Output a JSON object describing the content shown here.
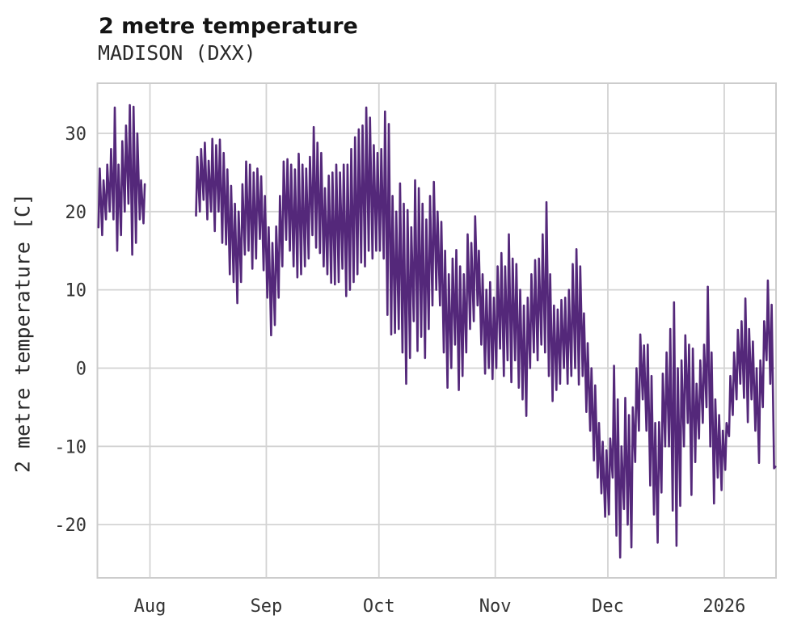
{
  "header": {
    "title": "2 metre temperature",
    "subtitle": "MADISON (DXX)"
  },
  "chart_data": {
    "type": "line",
    "title": "2 metre temperature",
    "subtitle": "MADISON (DXX)",
    "xlabel": "",
    "ylabel": "2 metre temperature [C]",
    "legend": "none",
    "grid": true,
    "grid_color": "#d3d3d3",
    "spine_color": "#cccccc",
    "line_color": "#54287a",
    "line_width": 2.6,
    "y_ticks": [
      30,
      20,
      10,
      0,
      -10,
      -20
    ],
    "ylim": [
      -26.8,
      36.4
    ],
    "x_unit": "days (0 = first plotted day, mid-July; series runs to mid-January)",
    "xlim_days": [
      0,
      180.8
    ],
    "x_ticks": [
      {
        "t": 14,
        "label": "Aug"
      },
      {
        "t": 45,
        "label": "Sep"
      },
      {
        "t": 75,
        "label": "Oct"
      },
      {
        "t": 106,
        "label": "Nov"
      },
      {
        "t": 136,
        "label": "Dec"
      },
      {
        "t": 167,
        "label": "2026"
      }
    ],
    "series_name": "2 metre temperature, daily min/max envelope [C]",
    "point_format": "[day, daily_min, daily_max]",
    "segments": [
      [
        [
          0,
          18,
          25.5
        ],
        [
          1,
          17,
          24
        ],
        [
          2,
          19,
          26
        ],
        [
          3,
          20,
          28
        ],
        [
          4,
          19,
          33.3
        ],
        [
          5,
          15,
          26
        ],
        [
          6,
          17,
          29
        ],
        [
          7,
          20,
          31
        ],
        [
          8,
          21,
          33.6
        ],
        [
          9,
          14.5,
          33.4
        ],
        [
          10,
          16,
          30
        ],
        [
          11,
          19,
          24
        ],
        [
          12,
          18.5,
          23.5
        ]
      ],
      [
        [
          26,
          19.5,
          27
        ],
        [
          27,
          20,
          28
        ],
        [
          28,
          21.5,
          28.8
        ],
        [
          29,
          19,
          26.5
        ],
        [
          30,
          20,
          29.3
        ],
        [
          31,
          17.5,
          28.5
        ],
        [
          32,
          20,
          29.2
        ],
        [
          33,
          16,
          27.5
        ],
        [
          34,
          15.8,
          25.4
        ],
        [
          35,
          12,
          23.3
        ],
        [
          36,
          11,
          21
        ],
        [
          37,
          8.3,
          20
        ],
        [
          38,
          11,
          23.5
        ],
        [
          39,
          14.5,
          26.4
        ],
        [
          40,
          15,
          26
        ],
        [
          41,
          12.7,
          25
        ],
        [
          42,
          14,
          25.5
        ],
        [
          43,
          16.5,
          24.5
        ],
        [
          44,
          12.5,
          22
        ],
        [
          45,
          9,
          18
        ],
        [
          46,
          4.2,
          16
        ],
        [
          47,
          5.5,
          18.1
        ],
        [
          48,
          9,
          22
        ],
        [
          49,
          13,
          26.4
        ],
        [
          50,
          16.4,
          26.7
        ],
        [
          51,
          15,
          26
        ],
        [
          52,
          13,
          25.4
        ],
        [
          53,
          11.6,
          27.4
        ],
        [
          54,
          12,
          26
        ],
        [
          55,
          13,
          25.5
        ],
        [
          56,
          14,
          27
        ],
        [
          57,
          17,
          30.8
        ],
        [
          58,
          15.4,
          28.8
        ],
        [
          59,
          14.7,
          27.5
        ],
        [
          60,
          13,
          23
        ],
        [
          61,
          12,
          24.6
        ],
        [
          62,
          10.9,
          25
        ],
        [
          63,
          10.7,
          26
        ],
        [
          64,
          11,
          25
        ],
        [
          65,
          12.7,
          26
        ],
        [
          66,
          9.2,
          26
        ],
        [
          67,
          10,
          28
        ],
        [
          68,
          11,
          29.5
        ],
        [
          69,
          12,
          30.5
        ],
        [
          70,
          13.5,
          31
        ],
        [
          71,
          13,
          33.3
        ],
        [
          72,
          15,
          32
        ],
        [
          73,
          14,
          28.5
        ],
        [
          74,
          15,
          27.5
        ],
        [
          75,
          15,
          28
        ],
        [
          76,
          14,
          32.8
        ],
        [
          77,
          6.8,
          31.2
        ],
        [
          78,
          4.3,
          22
        ],
        [
          79,
          4.5,
          20
        ],
        [
          80,
          5,
          23.6
        ],
        [
          81,
          2,
          21
        ],
        [
          82,
          -2,
          20.2
        ],
        [
          83,
          1.3,
          18
        ],
        [
          84,
          6,
          24
        ],
        [
          85,
          2.2,
          23
        ],
        [
          86,
          4,
          21
        ],
        [
          87,
          1.3,
          19
        ],
        [
          88,
          5,
          22
        ],
        [
          89,
          8,
          23.8
        ],
        [
          90,
          10,
          20
        ],
        [
          91,
          8,
          18.7
        ],
        [
          92,
          2,
          15
        ],
        [
          93,
          -2.5,
          12
        ],
        [
          94,
          0,
          14
        ],
        [
          95,
          3,
          15.1
        ],
        [
          96,
          -2.8,
          13
        ],
        [
          97,
          -1,
          12
        ],
        [
          98,
          2,
          17.1
        ],
        [
          99,
          5,
          16
        ],
        [
          100,
          6,
          19.4
        ],
        [
          101,
          8,
          15
        ],
        [
          102,
          3,
          12
        ],
        [
          103,
          -0.7,
          10
        ],
        [
          104,
          0,
          11
        ],
        [
          105,
          -1.4,
          9
        ],
        [
          106,
          0,
          13
        ],
        [
          107,
          2.5,
          14.7
        ],
        [
          108,
          -1,
          13
        ],
        [
          109,
          1,
          17.1
        ],
        [
          110,
          -1.8,
          14
        ],
        [
          111,
          1,
          13.3
        ],
        [
          112,
          -2.5,
          10
        ],
        [
          113,
          -4,
          8
        ],
        [
          114,
          -6.1,
          9
        ],
        [
          115,
          0,
          12
        ],
        [
          116,
          2,
          13.8
        ],
        [
          117,
          1,
          14
        ],
        [
          118,
          3,
          17.1
        ],
        [
          119,
          2,
          21.2
        ],
        [
          120,
          -1,
          12
        ],
        [
          121,
          -4.2,
          8
        ],
        [
          122,
          -2.8,
          7.5
        ],
        [
          123,
          -2,
          8.7
        ],
        [
          124,
          0,
          9
        ],
        [
          125,
          -2,
          10
        ],
        [
          126,
          -1,
          13.3
        ],
        [
          127,
          0,
          15.2
        ],
        [
          128,
          -2.1,
          13
        ],
        [
          129,
          -1,
          7
        ],
        [
          130,
          -5.6,
          3.2
        ],
        [
          131,
          -8,
          0
        ],
        [
          132,
          -11.8,
          -2.2
        ],
        [
          133,
          -14,
          -7
        ],
        [
          134,
          -16,
          -9.4
        ],
        [
          135,
          -19,
          -10.5
        ],
        [
          136,
          -18.7,
          -9
        ],
        [
          137,
          -14,
          0.3
        ],
        [
          138,
          -21.4,
          -4
        ],
        [
          139,
          -24.2,
          -10
        ],
        [
          140,
          -18,
          -3.8
        ],
        [
          141,
          -20,
          -6
        ],
        [
          142,
          -22.9,
          -5
        ],
        [
          143,
          -12,
          0
        ],
        [
          144,
          -8,
          4.3
        ],
        [
          145,
          -4,
          2.9
        ],
        [
          146,
          -8,
          3
        ],
        [
          147,
          -15,
          -1
        ],
        [
          148,
          -18.7,
          -7
        ],
        [
          149,
          -22.3,
          -6.9
        ],
        [
          150,
          -15.9,
          -0.7
        ],
        [
          151,
          -10,
          2
        ],
        [
          152,
          -10,
          5
        ],
        [
          153,
          -18.2,
          8.4
        ],
        [
          154,
          -22.7,
          0
        ],
        [
          155,
          -17.6,
          1
        ],
        [
          156,
          -10,
          4.2
        ],
        [
          157,
          -7,
          3
        ],
        [
          158,
          -16.2,
          2.5
        ],
        [
          159,
          -12,
          -2
        ],
        [
          160,
          -9,
          1
        ],
        [
          161,
          -7,
          3
        ],
        [
          162,
          -5,
          10.4
        ],
        [
          163,
          -10,
          2
        ],
        [
          164,
          -17.3,
          -4
        ],
        [
          165,
          -14,
          -6
        ],
        [
          166,
          -15.6,
          -8
        ],
        [
          167,
          -13,
          -7
        ],
        [
          168,
          -8.7,
          -1
        ],
        [
          169,
          -6,
          2
        ],
        [
          170,
          -4,
          4.9
        ],
        [
          171,
          -2,
          6
        ],
        [
          172,
          -3.8,
          8.9
        ],
        [
          173,
          -6.9,
          5
        ],
        [
          174,
          -4,
          3.4
        ],
        [
          175,
          -8,
          0
        ],
        [
          176,
          -12.1,
          1
        ],
        [
          177,
          -5,
          6
        ],
        [
          178,
          1,
          11.2
        ],
        [
          179,
          -2,
          8.1
        ],
        [
          180,
          -12.8,
          -12.6
        ]
      ]
    ]
  }
}
